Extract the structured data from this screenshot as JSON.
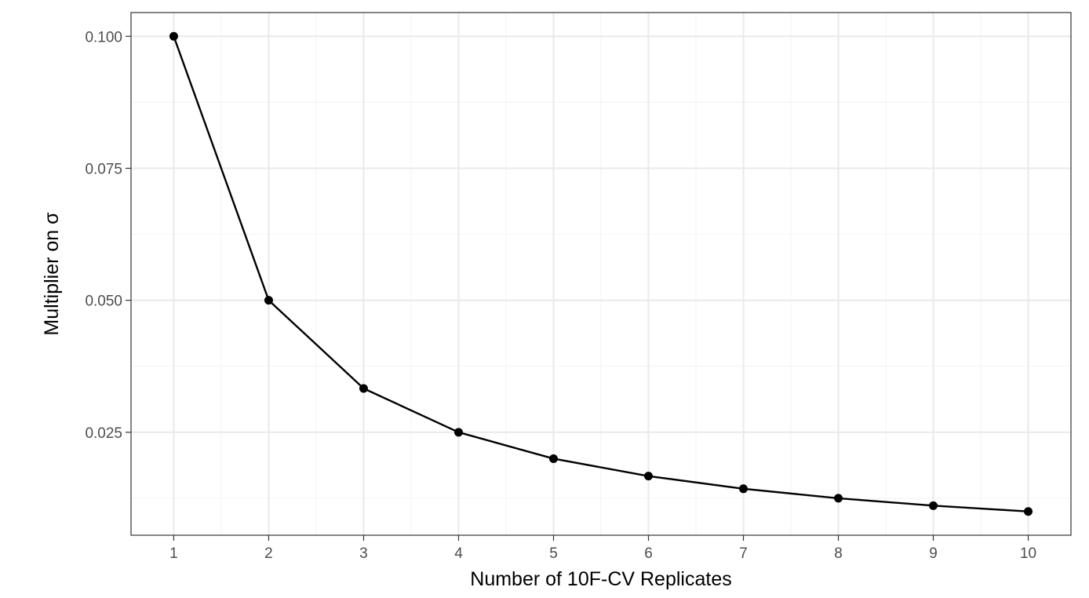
{
  "chart_data": {
    "type": "line",
    "title": "",
    "xlabel": "Number of 10F-CV Replicates",
    "ylabel": "Multiplier on σ",
    "x": [
      1,
      2,
      3,
      4,
      5,
      6,
      7,
      8,
      9,
      10
    ],
    "series": [
      {
        "values": [
          0.1,
          0.05,
          0.0333,
          0.025,
          0.02,
          0.0167,
          0.0143,
          0.0125,
          0.0111,
          0.01
        ]
      }
    ],
    "xlim": [
      0.55,
      10.45
    ],
    "ylim": [
      0.0055,
      0.1045
    ],
    "x_ticks": [
      "1",
      "2",
      "3",
      "4",
      "5",
      "6",
      "7",
      "8",
      "9",
      "10"
    ],
    "y_ticks": [
      {
        "value": 0.025,
        "label": "0.025"
      },
      {
        "value": 0.05,
        "label": "0.050"
      },
      {
        "value": 0.075,
        "label": "0.075"
      },
      {
        "value": 0.1,
        "label": "0.100"
      }
    ],
    "grid": true,
    "legend": "none",
    "colors": {
      "line": "#000000",
      "points": "#000000",
      "grid_major": "#ebebeb",
      "grid_minor": "#f5f5f5",
      "panel_border": "#333333",
      "tick_text": "#4d4d4d"
    }
  }
}
